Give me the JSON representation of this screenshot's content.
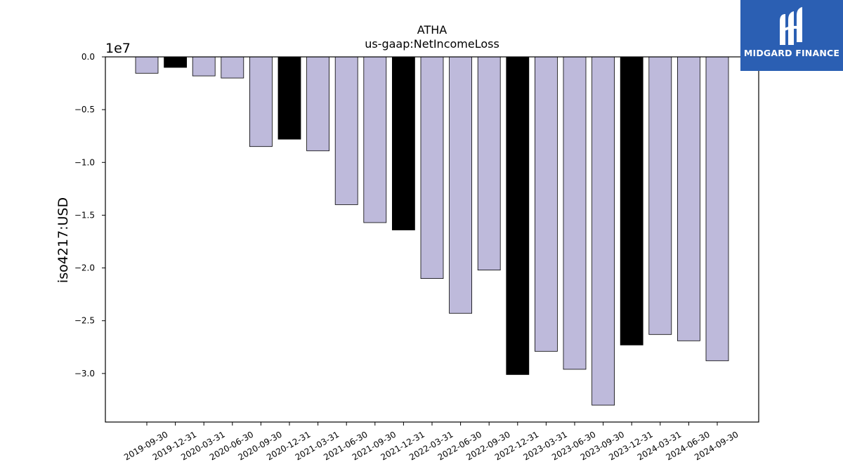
{
  "chart_data": {
    "type": "bar",
    "title": "ATHA",
    "subtitle": "us-gaap:NetIncomeLoss",
    "ylabel": "iso4217:USD",
    "scale_label": "1e7",
    "ylim": [
      -3.46,
      0
    ],
    "yticks": [
      0.0,
      -0.5,
      -1.0,
      -1.5,
      -2.0,
      -2.5,
      -3.0
    ],
    "ytick_labels": [
      "0.0",
      "−0.5",
      "−1.0",
      "−1.5",
      "−2.0",
      "−2.5",
      "−3.0"
    ],
    "categories": [
      "2019-09-30",
      "2019-12-31",
      "2020-03-31",
      "2020-06-30",
      "2020-09-30",
      "2020-12-31",
      "2021-03-31",
      "2021-06-30",
      "2021-09-30",
      "2021-12-31",
      "2022-03-31",
      "2022-06-30",
      "2022-09-30",
      "2022-12-31",
      "2023-03-31",
      "2023-06-30",
      "2023-09-30",
      "2023-12-31",
      "2024-03-31",
      "2024-06-30",
      "2024-09-30"
    ],
    "values": [
      -0.155,
      -0.1,
      -0.18,
      -0.2,
      -0.85,
      -0.78,
      -0.89,
      -1.4,
      -1.57,
      -1.64,
      -2.1,
      -2.43,
      -2.02,
      -3.01,
      -2.79,
      -2.96,
      -3.3,
      -2.73,
      -2.63,
      -2.69,
      -2.88
    ],
    "bar_colors": [
      "#bebadb",
      "#000000",
      "#bebadb",
      "#bebadb",
      "#bebadb",
      "#000000",
      "#bebadb",
      "#bebadb",
      "#bebadb",
      "#000000",
      "#bebadb",
      "#bebadb",
      "#bebadb",
      "#000000",
      "#bebadb",
      "#bebadb",
      "#bebadb",
      "#000000",
      "#bebadb",
      "#bebadb",
      "#bebadb"
    ],
    "grid": false,
    "legend": "none"
  },
  "logo": {
    "text": "MIDGARD FINANCE",
    "background": "#2b5fb3"
  }
}
